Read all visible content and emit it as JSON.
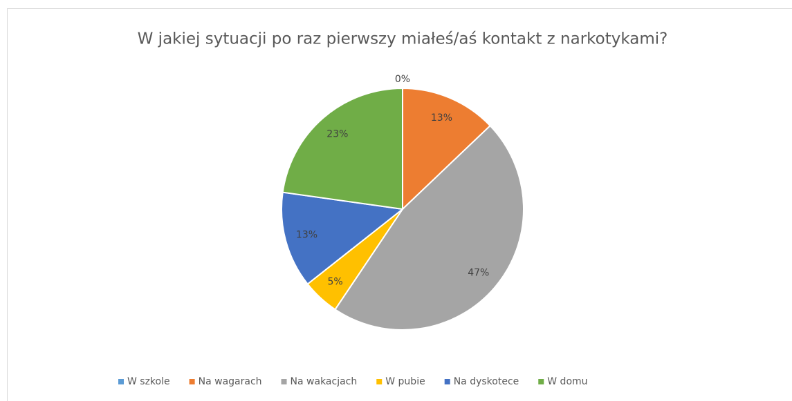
{
  "chart_data": {
    "type": "pie",
    "title": "W jakiej sytuacji po raz pierwszy miałeś/aś kontakt z narkotykami?",
    "categories": [
      "W szkole",
      "Na wagarach",
      "Na wakacjach",
      "W pubie",
      "Na dyskotece",
      "W domu"
    ],
    "values": [
      0,
      13,
      47,
      5,
      13,
      23
    ],
    "value_labels": [
      "0%",
      "13%",
      "47%",
      "5%",
      "13%",
      "23%"
    ],
    "colors": [
      "#5b9bd5",
      "#ed7d31",
      "#a5a5a5",
      "#ffc000",
      "#4472c4",
      "#70ad47"
    ],
    "legend": "bottom"
  }
}
